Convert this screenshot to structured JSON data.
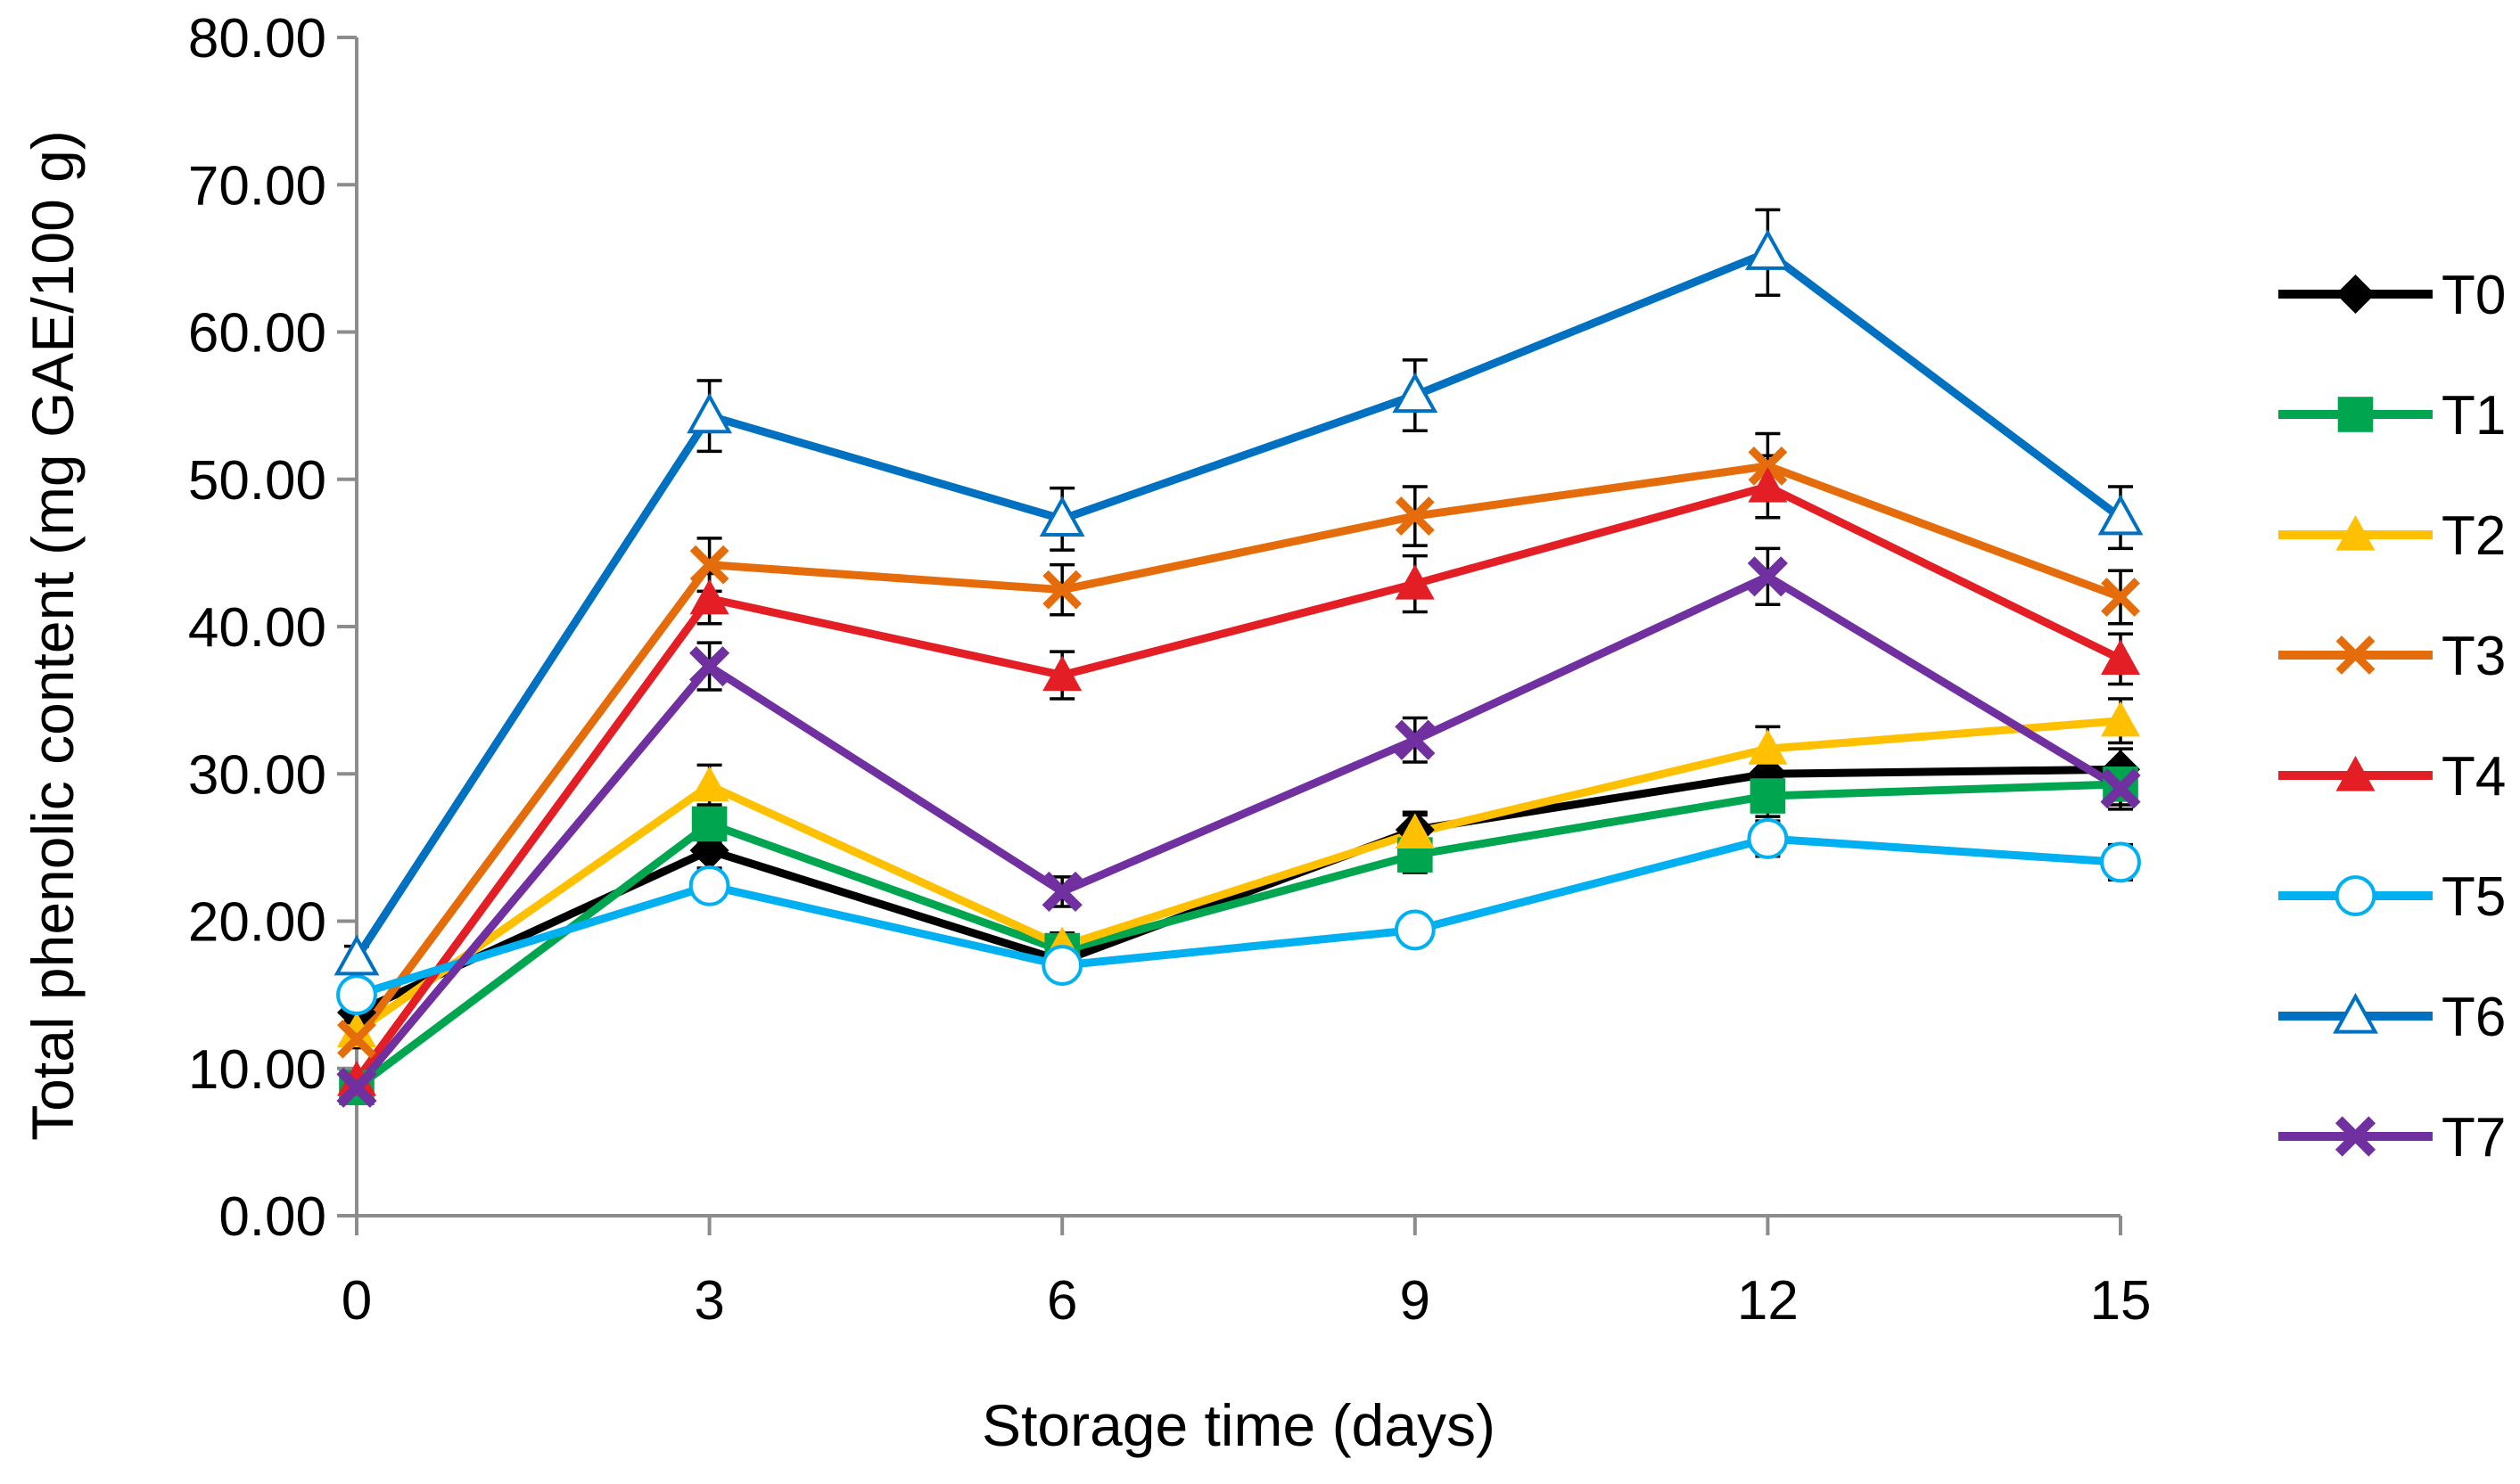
{
  "chart_data": {
    "type": "line",
    "title": "",
    "xlabel": "Storage time (days)",
    "ylabel": "Total phenolic content (mg GAE/100 g)",
    "x": [
      0,
      3,
      6,
      9,
      12,
      15
    ],
    "x_tick_labels": [
      "0",
      "3",
      "6",
      "9",
      "12",
      "15"
    ],
    "ylim": [
      0,
      80
    ],
    "y_tick_labels": [
      "0.00",
      "10.00",
      "20.00",
      "30.00",
      "40.00",
      "50.00",
      "60.00",
      "70.00",
      "80.00"
    ],
    "grid": false,
    "legend_position": "right",
    "series": [
      {
        "name": "T0",
        "color": "#000000",
        "marker": "diamond",
        "values": [
          13.8,
          24.8,
          17.3,
          26.2,
          30.0,
          30.3
        ],
        "errors": [
          0.6,
          1.2,
          0.9,
          1.2,
          1.4,
          1.4
        ]
      },
      {
        "name": "T1",
        "color": "#00a64f",
        "marker": "square",
        "values": [
          8.7,
          26.6,
          18.0,
          24.5,
          28.5,
          29.3
        ],
        "errors": [
          0.5,
          1.3,
          0.9,
          1.2,
          1.4,
          1.4
        ]
      },
      {
        "name": "T2",
        "color": "#ffc000",
        "marker": "triangle",
        "values": [
          12.5,
          29.2,
          18.3,
          26.0,
          31.7,
          33.6
        ],
        "errors": [
          0.6,
          1.4,
          0.9,
          1.2,
          1.5,
          1.5
        ]
      },
      {
        "name": "T3",
        "color": "#e46c0a",
        "marker": "x",
        "values": [
          12.0,
          44.2,
          42.5,
          47.5,
          50.9,
          42.0
        ],
        "errors": [
          0.6,
          1.8,
          1.7,
          2.0,
          2.2,
          1.8
        ]
      },
      {
        "name": "T4",
        "color": "#e31e24",
        "marker": "triangle",
        "values": [
          9.2,
          41.9,
          36.7,
          42.9,
          49.5,
          37.8
        ],
        "errors": [
          0.5,
          1.7,
          1.6,
          1.9,
          2.1,
          1.7
        ]
      },
      {
        "name": "T5",
        "color": "#00b0f0",
        "marker": "circle-open",
        "values": [
          15.0,
          22.4,
          17.0,
          19.4,
          25.6,
          24.0
        ],
        "errors": [
          0.7,
          1.0,
          0.8,
          1.0,
          1.2,
          1.2
        ]
      },
      {
        "name": "T6",
        "color": "#0070c0",
        "marker": "triangle-open",
        "values": [
          17.5,
          54.3,
          47.3,
          55.7,
          65.4,
          47.4
        ],
        "errors": [
          0.8,
          2.4,
          2.1,
          2.4,
          2.9,
          2.1
        ]
      },
      {
        "name": "T7",
        "color": "#7030a0",
        "marker": "cross",
        "values": [
          8.7,
          37.3,
          22.0,
          32.3,
          43.4,
          29.0
        ],
        "errors": [
          0.5,
          1.6,
          1.0,
          1.5,
          1.9,
          1.4
        ]
      }
    ]
  }
}
